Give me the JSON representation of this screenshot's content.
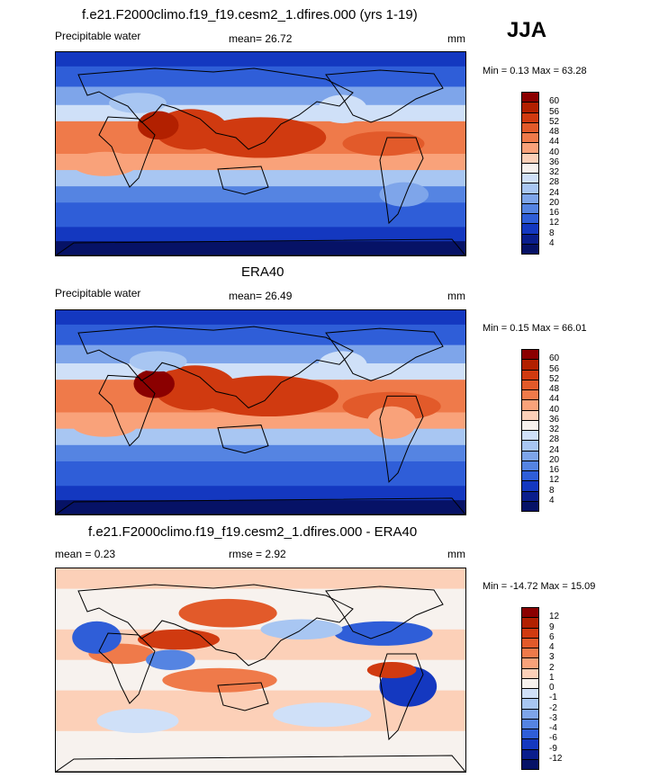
{
  "season": "JJA",
  "panels": [
    {
      "title": "f.e21.F2000climo.f19_f19.cesm2_1.dfires.000 (yrs 1-19)",
      "left_label": "Precipitable water",
      "center_label": "mean=  26.72",
      "units": "mm",
      "stats": "Min =   0.13 Max =  63.28",
      "colorbar": {
        "levels": [
          "60",
          "56",
          "52",
          "48",
          "44",
          "40",
          "36",
          "32",
          "28",
          "24",
          "20",
          "16",
          "12",
          "8",
          "4"
        ],
        "colors": [
          "#8b0000",
          "#b22000",
          "#d03a10",
          "#e25a2a",
          "#ef7a4a",
          "#f9a27a",
          "#fcd0b8",
          "#f7f2ee",
          "#cfe0f8",
          "#a8c6f2",
          "#7ea5ea",
          "#5584e2",
          "#2f5ed8",
          "#1438c0",
          "#0a1e8c",
          "#061266"
        ]
      }
    },
    {
      "title": "ERA40",
      "left_label": "Precipitable water",
      "center_label": "mean=  26.49",
      "units": "mm",
      "stats": "Min =   0.15 Max =  66.01",
      "colorbar": {
        "levels": [
          "60",
          "56",
          "52",
          "48",
          "44",
          "40",
          "36",
          "32",
          "28",
          "24",
          "20",
          "16",
          "12",
          "8",
          "4"
        ],
        "colors": [
          "#8b0000",
          "#b22000",
          "#d03a10",
          "#e25a2a",
          "#ef7a4a",
          "#f9a27a",
          "#fcd0b8",
          "#f7f2ee",
          "#cfe0f8",
          "#a8c6f2",
          "#7ea5ea",
          "#5584e2",
          "#2f5ed8",
          "#1438c0",
          "#0a1e8c",
          "#061266"
        ]
      }
    },
    {
      "title": "f.e21.F2000climo.f19_f19.cesm2_1.dfires.000 - ERA40",
      "left_label": "mean =   0.23",
      "center_label": "rmse =   2.92",
      "units": "mm",
      "stats": "Min = -14.72 Max =  15.09",
      "colorbar": {
        "levels": [
          "12",
          "9",
          "6",
          "4",
          "3",
          "2",
          "1",
          "0",
          "-1",
          "-2",
          "-3",
          "-4",
          "-6",
          "-9",
          "-12"
        ],
        "colors": [
          "#8b0000",
          "#b22000",
          "#d03a10",
          "#e25a2a",
          "#ef7a4a",
          "#f9a27a",
          "#fcd0b8",
          "#f7f2ee",
          "#cfe0f8",
          "#a8c6f2",
          "#7ea5ea",
          "#5584e2",
          "#2f5ed8",
          "#1438c0",
          "#0a1e8c",
          "#061266"
        ]
      }
    }
  ]
}
